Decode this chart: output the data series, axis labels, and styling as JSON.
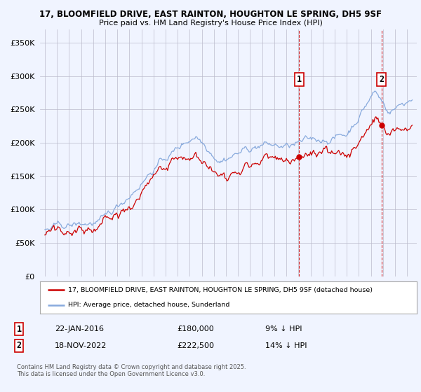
{
  "title1": "17, BLOOMFIELD DRIVE, EAST RAINTON, HOUGHTON LE SPRING, DH5 9SF",
  "title2": "Price paid vs. HM Land Registry's House Price Index (HPI)",
  "legend_line1": "17, BLOOMFIELD DRIVE, EAST RAINTON, HOUGHTON LE SPRING, DH5 9SF (detached house)",
  "legend_line2": "HPI: Average price, detached house, Sunderland",
  "annotation1_num": "1",
  "annotation1_date": "22-JAN-2016",
  "annotation1_price": "£180,000",
  "annotation1_hpi": "9% ↓ HPI",
  "annotation2_num": "2",
  "annotation2_date": "18-NOV-2022",
  "annotation2_price": "£222,500",
  "annotation2_hpi": "14% ↓ HPI",
  "copyright_text": "Contains HM Land Registry data © Crown copyright and database right 2025.\nThis data is licensed under the Open Government Licence v3.0.",
  "red_color": "#cc0000",
  "blue_color": "#88aadd",
  "background_color": "#f0f4ff",
  "grid_color": "#bbbbcc",
  "ylim": [
    0,
    370000
  ],
  "yticks": [
    0,
    50000,
    100000,
    150000,
    200000,
    250000,
    300000,
    350000
  ],
  "purchase1_year": 2016.05,
  "purchase1_price": 180000,
  "purchase2_year": 2022.88,
  "purchase2_price": 222500
}
